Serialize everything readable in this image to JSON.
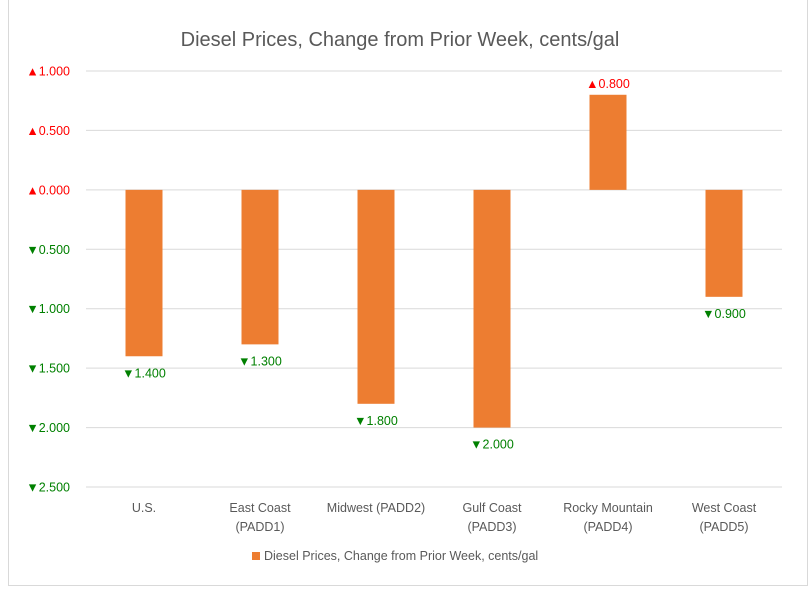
{
  "chart_data": {
    "type": "bar",
    "title": "Diesel Prices, Change from Prior Week, cents/gal",
    "xlabel": "",
    "ylabel": "",
    "categories": [
      [
        "U.S."
      ],
      [
        "East Coast",
        "(PADD1)"
      ],
      [
        "Midwest (PADD2)"
      ],
      [
        "Gulf Coast",
        "(PADD3)"
      ],
      [
        "Rocky Mountain",
        "(PADD4)"
      ],
      [
        "West Coast",
        "(PADD5)"
      ]
    ],
    "series": [
      {
        "name": "Diesel Prices, Change from Prior Week, cents/gal",
        "color": "#ED7D31",
        "values": [
          -1.4,
          -1.3,
          -1.8,
          -2.0,
          0.8,
          -0.9
        ],
        "data_labels": [
          "▼1.400",
          "▼1.300",
          "▼1.800",
          "▼2.000",
          "▲0.800",
          "▼0.900"
        ]
      }
    ],
    "ylim": [
      -2.5,
      1.0
    ],
    "yticks": [
      1.0,
      0.5,
      0.0,
      -0.5,
      -1.0,
      -1.5,
      -2.0,
      -2.5
    ],
    "ytick_labels": [
      "▲1.000",
      "▲0.500",
      "▲0.000",
      "▼0.500",
      "▼1.000",
      "▼1.500",
      "▼2.000",
      "▼2.500"
    ],
    "grid": true,
    "legend": "bottom-center",
    "colors": {
      "up": "#FF0000",
      "down": "#008000",
      "bar": "#ED7D31",
      "grid": "#D9D9D9",
      "text": "#595959"
    }
  }
}
